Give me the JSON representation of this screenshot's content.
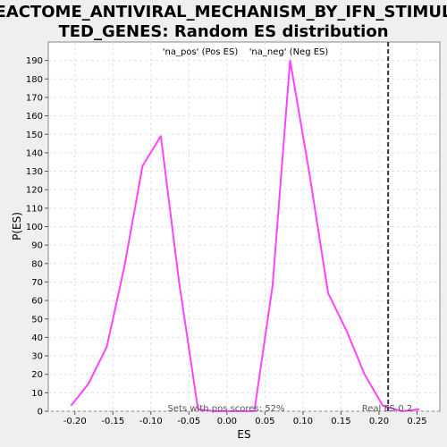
{
  "chart_data": {
    "type": "line",
    "title_line1": "REACTOME_ANTIVIRAL_MECHANISM_BY_IFN_STIMULA",
    "title_line2": "TED_GENES: Random ES distribution",
    "xlabel": "ES",
    "ylabel": "P(ES)",
    "xlim": [
      -0.235,
      0.28
    ],
    "ylim": [
      0,
      200
    ],
    "xticks": [
      -0.2,
      -0.15,
      -0.1,
      -0.05,
      0.0,
      0.05,
      0.1,
      0.15,
      0.2,
      0.25
    ],
    "xtick_labels": [
      "-0.20",
      "-0.15",
      "-0.10",
      "-0.05",
      "0.00",
      "0.05",
      "0.10",
      "0.15",
      "0.20",
      "0.25"
    ],
    "yticks": [
      0,
      10,
      20,
      30,
      40,
      50,
      60,
      70,
      80,
      90,
      100,
      110,
      120,
      130,
      140,
      150,
      160,
      170,
      180,
      190
    ],
    "grid": true,
    "series": [
      {
        "color": "#ff44ff",
        "x": [
          -0.205,
          -0.182,
          -0.158,
          -0.135,
          -0.111,
          -0.087,
          -0.063,
          -0.038,
          -0.015,
          0.01,
          0.036,
          0.06,
          0.083,
          0.108,
          0.133,
          0.158,
          0.181,
          0.205,
          0.23,
          0.253
        ],
        "y": [
          3,
          15,
          35,
          78,
          133,
          149,
          70,
          1,
          0,
          0,
          0,
          68,
          190,
          130,
          64,
          43,
          20,
          3,
          0,
          1
        ]
      }
    ],
    "legend": [
      {
        "label": "'na_pos' (Pos ES)",
        "color": "#e03030"
      },
      {
        "label": "'na_neg' (Neg ES)",
        "color": "#3030c8"
      }
    ],
    "real_es": {
      "x": 0.212,
      "label": "Real ES 0.2"
    },
    "pos_scores_note": "Sets with pos scores: 52%"
  }
}
